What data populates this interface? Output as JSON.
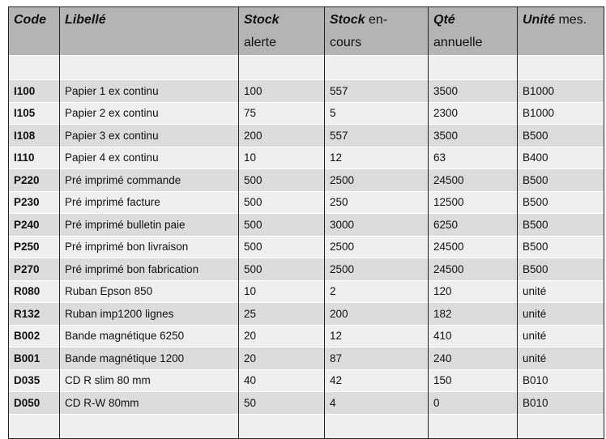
{
  "header": {
    "code": "Code",
    "libelle": "Libellé",
    "stock_alerte": {
      "bold": "Stock",
      "rest": "alerte"
    },
    "stock_encours": {
      "bold": "Stock",
      "rest1": " en-",
      "rest2": "cours"
    },
    "qte_annuelle": {
      "bold": "Qté",
      "rest": "annuelle"
    },
    "unite": {
      "bold": "Unité",
      "rest": " mes."
    }
  },
  "rows": [
    {
      "code": "I100",
      "libelle": "Papier 1 ex continu",
      "alerte": "100",
      "encours": "557",
      "qte": "3500",
      "unite": "B1000"
    },
    {
      "code": "I105",
      "libelle": "Papier 2 ex continu",
      "alerte": "75",
      "encours": "5",
      "qte": "2300",
      "unite": "B1000"
    },
    {
      "code": "I108",
      "libelle": "Papier 3 ex continu",
      "alerte": "200",
      "encours": "557",
      "qte": "3500",
      "unite": "B500"
    },
    {
      "code": "I110",
      "libelle": "Papier 4 ex continu",
      "alerte": "10",
      "encours": "12",
      "qte": "63",
      "unite": "B400"
    },
    {
      "code": "P220",
      "libelle": "Pré imprimé commande",
      "alerte": "500",
      "encours": "2500",
      "qte": "24500",
      "unite": "B500"
    },
    {
      "code": "P230",
      "libelle": "Pré imprimé facture",
      "alerte": "500",
      "encours": "250",
      "qte": "12500",
      "unite": "B500"
    },
    {
      "code": "P240",
      "libelle": "Pré imprimé bulletin paie",
      "alerte": "500",
      "encours": "3000",
      "qte": "6250",
      "unite": "B500"
    },
    {
      "code": "P250",
      "libelle": "Pré imprimé bon livraison",
      "alerte": "500",
      "encours": "2500",
      "qte": "24500",
      "unite": "B500"
    },
    {
      "code": "P270",
      "libelle": "Pré imprimé bon fabrication",
      "alerte": "500",
      "encours": "2500",
      "qte": "24500",
      "unite": "B500"
    },
    {
      "code": "R080",
      "libelle": "Ruban Epson 850",
      "alerte": "10",
      "encours": "2",
      "qte": "120",
      "unite": "unité"
    },
    {
      "code": "R132",
      "libelle": "Ruban imp1200 lignes",
      "alerte": "25",
      "encours": "200",
      "qte": "182",
      "unite": "unité"
    },
    {
      "code": "B002",
      "libelle": "Bande magnétique 6250",
      "alerte": "20",
      "encours": "12",
      "qte": "410",
      "unite": "unité"
    },
    {
      "code": "B001",
      "libelle": "Bande magnétique 1200",
      "alerte": "20",
      "encours": "87",
      "qte": "240",
      "unite": "unité"
    },
    {
      "code": "D035",
      "libelle": "CD R slim 80 mm",
      "alerte": "40",
      "encours": "42",
      "qte": "150",
      "unite": "B010"
    },
    {
      "code": "D050",
      "libelle": "CD R-W 80mm",
      "alerte": "50",
      "encours": "4",
      "qte": "0",
      "unite": "B010"
    }
  ]
}
